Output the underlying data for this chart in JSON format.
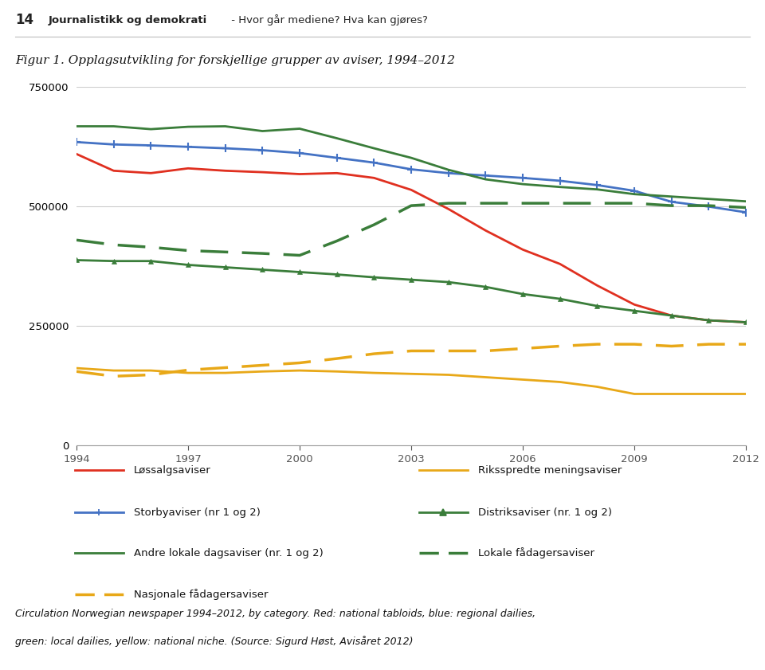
{
  "years": [
    1994,
    1995,
    1996,
    1997,
    1998,
    1999,
    2000,
    2001,
    2002,
    2003,
    2004,
    2005,
    2006,
    2007,
    2008,
    2009,
    2010,
    2011,
    2012
  ],
  "lossalgsaviser": [
    610000,
    575000,
    570000,
    580000,
    575000,
    572000,
    568000,
    570000,
    560000,
    535000,
    495000,
    450000,
    410000,
    380000,
    335000,
    295000,
    272000,
    262000,
    258000
  ],
  "storbyaviser": [
    635000,
    630000,
    628000,
    625000,
    622000,
    618000,
    612000,
    602000,
    592000,
    578000,
    570000,
    565000,
    560000,
    554000,
    545000,
    533000,
    510000,
    500000,
    488000
  ],
  "andre_lokale_dagsaviser": [
    668000,
    668000,
    662000,
    667000,
    668000,
    658000,
    663000,
    643000,
    622000,
    602000,
    577000,
    557000,
    547000,
    541000,
    536000,
    526000,
    521000,
    516000,
    511000
  ],
  "nasjonale_fadagersaviser": [
    155000,
    145000,
    148000,
    158000,
    163000,
    168000,
    173000,
    182000,
    192000,
    198000,
    198000,
    198000,
    203000,
    208000,
    212000,
    212000,
    208000,
    212000,
    212000
  ],
  "riksspredte_meningsaviser": [
    162000,
    157000,
    157000,
    152000,
    152000,
    155000,
    157000,
    155000,
    152000,
    150000,
    148000,
    143000,
    138000,
    133000,
    123000,
    108000,
    108000,
    108000,
    108000
  ],
  "distriksaviser": [
    388000,
    386000,
    386000,
    378000,
    373000,
    368000,
    363000,
    358000,
    352000,
    347000,
    342000,
    332000,
    317000,
    307000,
    292000,
    282000,
    272000,
    262000,
    258000
  ],
  "lokale_fadagersaviser": [
    430000,
    420000,
    415000,
    408000,
    405000,
    402000,
    398000,
    428000,
    462000,
    502000,
    507000,
    507000,
    507000,
    507000,
    507000,
    507000,
    502000,
    502000,
    498000
  ],
  "header_num": "14",
  "header_bold": "Journalistikk og demokrati",
  "header_rest": " - Hvor går mediene? Hva kan gjøres?",
  "figure_title": "Figur 1. Opplagsutvikling for forskjellige grupper av aviser, 1994–2012",
  "caption_line1": "Circulation Norwegian newspaper 1994–2012, by category. Red: national tabloids, blue: regional dailies,",
  "caption_line2": "green: local dailies, yellow: national niche. (Source: Sigurd Høst, Avisåret 2012)",
  "ylim": [
    0,
    750000
  ],
  "ytick_vals": [
    0,
    250000,
    500000,
    750000
  ],
  "ytick_labels": [
    "0",
    "250000",
    "500000",
    "750000"
  ],
  "xticks": [
    1994,
    1997,
    2000,
    2003,
    2006,
    2009,
    2012
  ],
  "color_red": "#e03020",
  "color_blue": "#4472c4",
  "color_green": "#3a7d3a",
  "color_gold": "#e8a818",
  "bg": "#ffffff"
}
